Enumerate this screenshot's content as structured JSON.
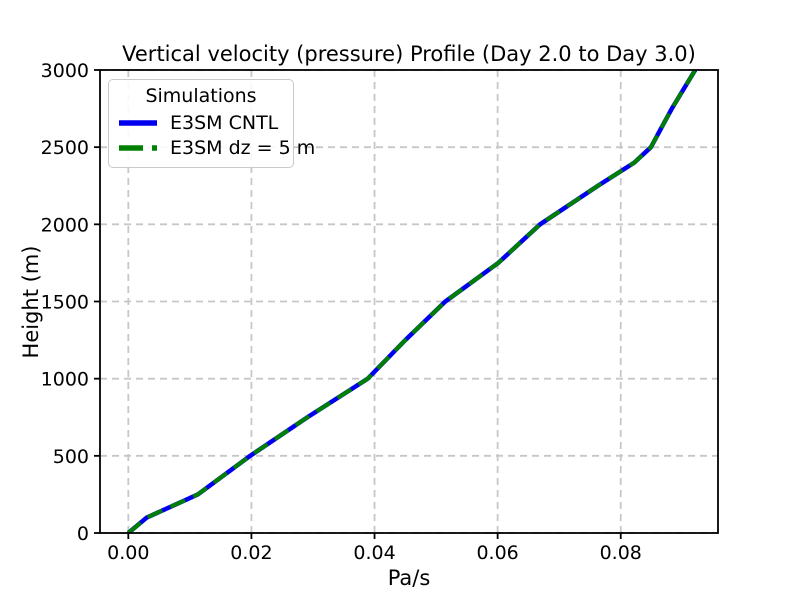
{
  "figure": {
    "background": "#ffffff",
    "text_color": "#000000",
    "grid_color": "#c7c7c7",
    "spine_color": "#000000"
  },
  "legend": {
    "title": "Simulations",
    "entries": [
      {
        "label": "E3SM CNTL",
        "color": "#0000ee",
        "line_style": "solid"
      },
      {
        "label": "E3SM dz = 5 m",
        "color": "#008000",
        "line_style": "dashed"
      }
    ]
  },
  "chart_data": {
    "type": "line",
    "title": "Vertical velocity (pressure) Profile (Day 2.0 to Day 3.0)",
    "xlabel": "Pa/s",
    "ylabel": "Height (m)",
    "xlim": [
      -0.0046,
      0.0958
    ],
    "ylim": [
      0,
      3000
    ],
    "xticks": [
      0.0,
      0.02,
      0.04,
      0.06,
      0.08
    ],
    "xtick_labels": [
      "0.00",
      "0.02",
      "0.04",
      "0.06",
      "0.08"
    ],
    "yticks": [
      0,
      500,
      1000,
      1500,
      2000,
      2500,
      3000
    ],
    "ytick_labels": [
      "0",
      "500",
      "1000",
      "1500",
      "2000",
      "2500",
      "3000"
    ],
    "grid": true,
    "grid_style": "dashed",
    "legend_position": "upper left",
    "legend_title": "Simulations",
    "series": [
      {
        "name": "E3SM CNTL",
        "color": "#0000ee",
        "line_style": "solid",
        "line_width": 4.5,
        "x": [
          0.0,
          0.003,
          0.0113,
          0.0198,
          0.0291,
          0.0389,
          0.045,
          0.0515,
          0.0601,
          0.0669,
          0.0763,
          0.0822,
          0.0849,
          0.0883,
          0.0921
        ],
        "y": [
          0,
          100,
          250,
          500,
          750,
          1000,
          1250,
          1500,
          1750,
          2000,
          2250,
          2400,
          2500,
          2750,
          3000
        ]
      },
      {
        "name": "E3SM dz = 5 m",
        "color": "#008000",
        "line_style": "dashed",
        "line_width": 4,
        "x": [
          0.0,
          0.003,
          0.0113,
          0.0198,
          0.0291,
          0.0389,
          0.045,
          0.0515,
          0.0601,
          0.0669,
          0.0763,
          0.0822,
          0.0849,
          0.0883,
          0.0921
        ],
        "y": [
          0,
          100,
          250,
          500,
          750,
          1000,
          1250,
          1500,
          1750,
          2000,
          2250,
          2400,
          2500,
          2750,
          3000
        ]
      }
    ]
  }
}
